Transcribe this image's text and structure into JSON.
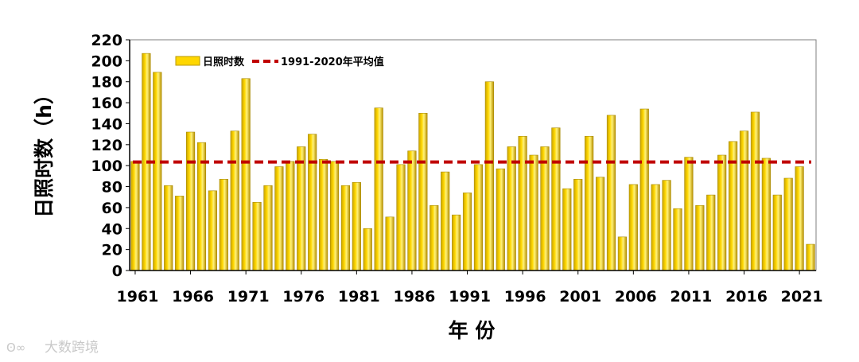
{
  "chart_data": {
    "type": "bar",
    "ylabel": "日照时数（h）",
    "xlabel": "年 份",
    "ylim": [
      0,
      220
    ],
    "yticks": [
      0,
      20,
      40,
      60,
      80,
      100,
      120,
      140,
      160,
      180,
      200,
      220
    ],
    "xticks": [
      "1961",
      "1966",
      "1971",
      "1976",
      "1981",
      "1986",
      "1991",
      "1996",
      "2001",
      "2006",
      "2011",
      "2016",
      "2021"
    ],
    "grid": false,
    "legend_position": "top-left",
    "series": [
      {
        "name": "日照时数",
        "color": "#ffd700",
        "x": [
          1961,
          1962,
          1963,
          1964,
          1965,
          1966,
          1967,
          1968,
          1969,
          1970,
          1971,
          1972,
          1973,
          1974,
          1975,
          1976,
          1977,
          1978,
          1979,
          1980,
          1981,
          1982,
          1983,
          1984,
          1985,
          1986,
          1987,
          1988,
          1989,
          1990,
          1991,
          1992,
          1993,
          1994,
          1995,
          1996,
          1997,
          1998,
          1999,
          2000,
          2001,
          2002,
          2003,
          2004,
          2005,
          2006,
          2007,
          2008,
          2009,
          2010,
          2011,
          2012,
          2013,
          2014,
          2015,
          2016,
          2017,
          2018,
          2019,
          2020,
          2021,
          2022
        ],
        "values": [
          104,
          207,
          189,
          81,
          71,
          132,
          122,
          76,
          87,
          133,
          183,
          65,
          81,
          99,
          104,
          118,
          130,
          106,
          104,
          81,
          84,
          40,
          155,
          51,
          101,
          114,
          150,
          62,
          94,
          53,
          74,
          101,
          180,
          97,
          118,
          128,
          110,
          118,
          136,
          78,
          87,
          128,
          89,
          148,
          32,
          82,
          154,
          82,
          86,
          59,
          108,
          62,
          72,
          110,
          123,
          133,
          151,
          107,
          72,
          88,
          99,
          25
        ]
      }
    ],
    "reference_lines": [
      {
        "name": "1991-2020年平均值",
        "value": 103.5,
        "color": "#c00000",
        "style": "dashed"
      }
    ]
  },
  "watermark": {
    "text": "大数跨境"
  }
}
